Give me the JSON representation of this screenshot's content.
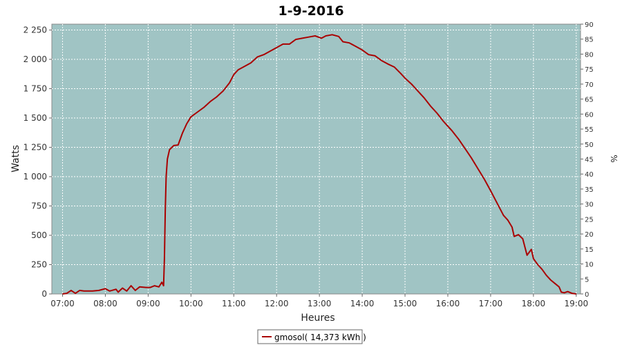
{
  "chart_data": {
    "type": "line",
    "title": "1-9-2016",
    "xlabel": "Heures",
    "ylabel": "Watts",
    "y2label": "%",
    "xlim": [
      6.75,
      19.1
    ],
    "ylim": [
      0,
      2300
    ],
    "y2lim": [
      0,
      90
    ],
    "x_ticks": [
      {
        "value": 7,
        "label": "07:00"
      },
      {
        "value": 8,
        "label": "08:00"
      },
      {
        "value": 9,
        "label": "09:00"
      },
      {
        "value": 10,
        "label": "10:00"
      },
      {
        "value": 11,
        "label": "11:00"
      },
      {
        "value": 12,
        "label": "12:00"
      },
      {
        "value": 13,
        "label": "13:00"
      },
      {
        "value": 14,
        "label": "14:00"
      },
      {
        "value": 15,
        "label": "15:00"
      },
      {
        "value": 16,
        "label": "16:00"
      },
      {
        "value": 17,
        "label": "17:00"
      },
      {
        "value": 18,
        "label": "18:00"
      },
      {
        "value": 19,
        "label": "19:00"
      }
    ],
    "y_ticks": [
      {
        "value": 0,
        "label": "0"
      },
      {
        "value": 250,
        "label": "250"
      },
      {
        "value": 500,
        "label": "500"
      },
      {
        "value": 750,
        "label": "750"
      },
      {
        "value": 1000,
        "label": "1 000"
      },
      {
        "value": 1250,
        "label": "1 250"
      },
      {
        "value": 1500,
        "label": "1 500"
      },
      {
        "value": 1750,
        "label": "1 750"
      },
      {
        "value": 2000,
        "label": "2 000"
      },
      {
        "value": 2250,
        "label": "2 250"
      }
    ],
    "y2_ticks": [
      0,
      5,
      10,
      15,
      20,
      25,
      30,
      35,
      40,
      45,
      50,
      55,
      60,
      65,
      70,
      75,
      80,
      85,
      90
    ],
    "grid": true,
    "legend": "bottom-center",
    "series": [
      {
        "name": "gmosol( 14,373 kWh )",
        "color": "#aa0000",
        "points": [
          [
            7.0,
            0
          ],
          [
            7.1,
            5
          ],
          [
            7.2,
            30
          ],
          [
            7.3,
            5
          ],
          [
            7.4,
            30
          ],
          [
            7.5,
            25
          ],
          [
            7.7,
            25
          ],
          [
            7.85,
            30
          ],
          [
            8.0,
            45
          ],
          [
            8.1,
            25
          ],
          [
            8.25,
            40
          ],
          [
            8.3,
            15
          ],
          [
            8.4,
            50
          ],
          [
            8.5,
            25
          ],
          [
            8.6,
            70
          ],
          [
            8.7,
            30
          ],
          [
            8.8,
            60
          ],
          [
            8.95,
            55
          ],
          [
            9.05,
            55
          ],
          [
            9.15,
            70
          ],
          [
            9.25,
            60
          ],
          [
            9.32,
            100
          ],
          [
            9.36,
            70
          ],
          [
            9.38,
            300
          ],
          [
            9.4,
            700
          ],
          [
            9.42,
            1000
          ],
          [
            9.45,
            1150
          ],
          [
            9.5,
            1230
          ],
          [
            9.6,
            1265
          ],
          [
            9.7,
            1270
          ],
          [
            9.8,
            1370
          ],
          [
            9.9,
            1450
          ],
          [
            10.0,
            1510
          ],
          [
            10.15,
            1550
          ],
          [
            10.3,
            1590
          ],
          [
            10.45,
            1640
          ],
          [
            10.6,
            1680
          ],
          [
            10.75,
            1730
          ],
          [
            10.9,
            1800
          ],
          [
            11.0,
            1870
          ],
          [
            11.1,
            1910
          ],
          [
            11.25,
            1940
          ],
          [
            11.4,
            1970
          ],
          [
            11.55,
            2020
          ],
          [
            11.7,
            2040
          ],
          [
            11.85,
            2070
          ],
          [
            12.0,
            2100
          ],
          [
            12.15,
            2130
          ],
          [
            12.3,
            2130
          ],
          [
            12.45,
            2170
          ],
          [
            12.6,
            2180
          ],
          [
            12.75,
            2190
          ],
          [
            12.9,
            2200
          ],
          [
            13.05,
            2180
          ],
          [
            13.15,
            2200
          ],
          [
            13.3,
            2210
          ],
          [
            13.45,
            2195
          ],
          [
            13.55,
            2150
          ],
          [
            13.7,
            2140
          ],
          [
            13.85,
            2110
          ],
          [
            14.0,
            2080
          ],
          [
            14.15,
            2040
          ],
          [
            14.3,
            2030
          ],
          [
            14.45,
            1990
          ],
          [
            14.6,
            1960
          ],
          [
            14.75,
            1935
          ],
          [
            14.9,
            1880
          ],
          [
            15.0,
            1840
          ],
          [
            15.15,
            1790
          ],
          [
            15.3,
            1730
          ],
          [
            15.45,
            1670
          ],
          [
            15.6,
            1600
          ],
          [
            15.75,
            1540
          ],
          [
            15.9,
            1470
          ],
          [
            16.0,
            1430
          ],
          [
            16.1,
            1390
          ],
          [
            16.25,
            1320
          ],
          [
            16.4,
            1240
          ],
          [
            16.55,
            1160
          ],
          [
            16.7,
            1070
          ],
          [
            16.85,
            980
          ],
          [
            17.0,
            880
          ],
          [
            17.1,
            810
          ],
          [
            17.2,
            740
          ],
          [
            17.3,
            670
          ],
          [
            17.4,
            630
          ],
          [
            17.5,
            570
          ],
          [
            17.55,
            490
          ],
          [
            17.65,
            505
          ],
          [
            17.75,
            470
          ],
          [
            17.85,
            330
          ],
          [
            17.95,
            380
          ],
          [
            18.0,
            300
          ],
          [
            18.1,
            250
          ],
          [
            18.2,
            210
          ],
          [
            18.3,
            160
          ],
          [
            18.4,
            120
          ],
          [
            18.5,
            90
          ],
          [
            18.6,
            60
          ],
          [
            18.65,
            15
          ],
          [
            18.72,
            10
          ],
          [
            18.8,
            20
          ],
          [
            18.9,
            5
          ],
          [
            19.0,
            0
          ]
        ]
      }
    ]
  }
}
